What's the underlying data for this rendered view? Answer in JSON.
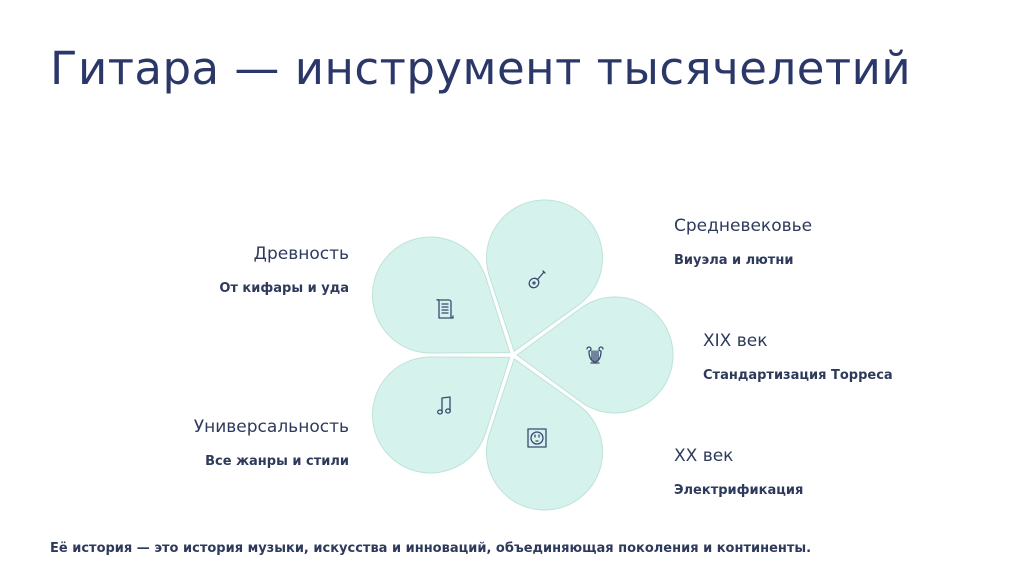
{
  "title": "Гитара — инструмент тысячелетий",
  "colors": {
    "title": "#2b3768",
    "text": "#2e3a5c",
    "petal_fill": "#d5f3ec",
    "petal_stroke": "#bde2d8",
    "icon": "#3a4870"
  },
  "petals": [
    {
      "heading": "Древность",
      "subtitle": "От кифары и уда",
      "icon": "scroll-icon"
    },
    {
      "heading": "Средневековье",
      "subtitle": "Виуэла и лютни",
      "icon": "lute-icon"
    },
    {
      "heading": "XIX век",
      "subtitle": "Стандартизация Торреса",
      "icon": "lyre-icon"
    },
    {
      "heading": "XX век",
      "subtitle": "Электрификация",
      "icon": "power-outlet-icon"
    },
    {
      "heading": "Универсальность",
      "subtitle": "Все жанры и стили",
      "icon": "music-note-icon"
    }
  ],
  "footer": "Её история — это история музыки, искусства и инноваций, объединяющая поколения и континенты."
}
